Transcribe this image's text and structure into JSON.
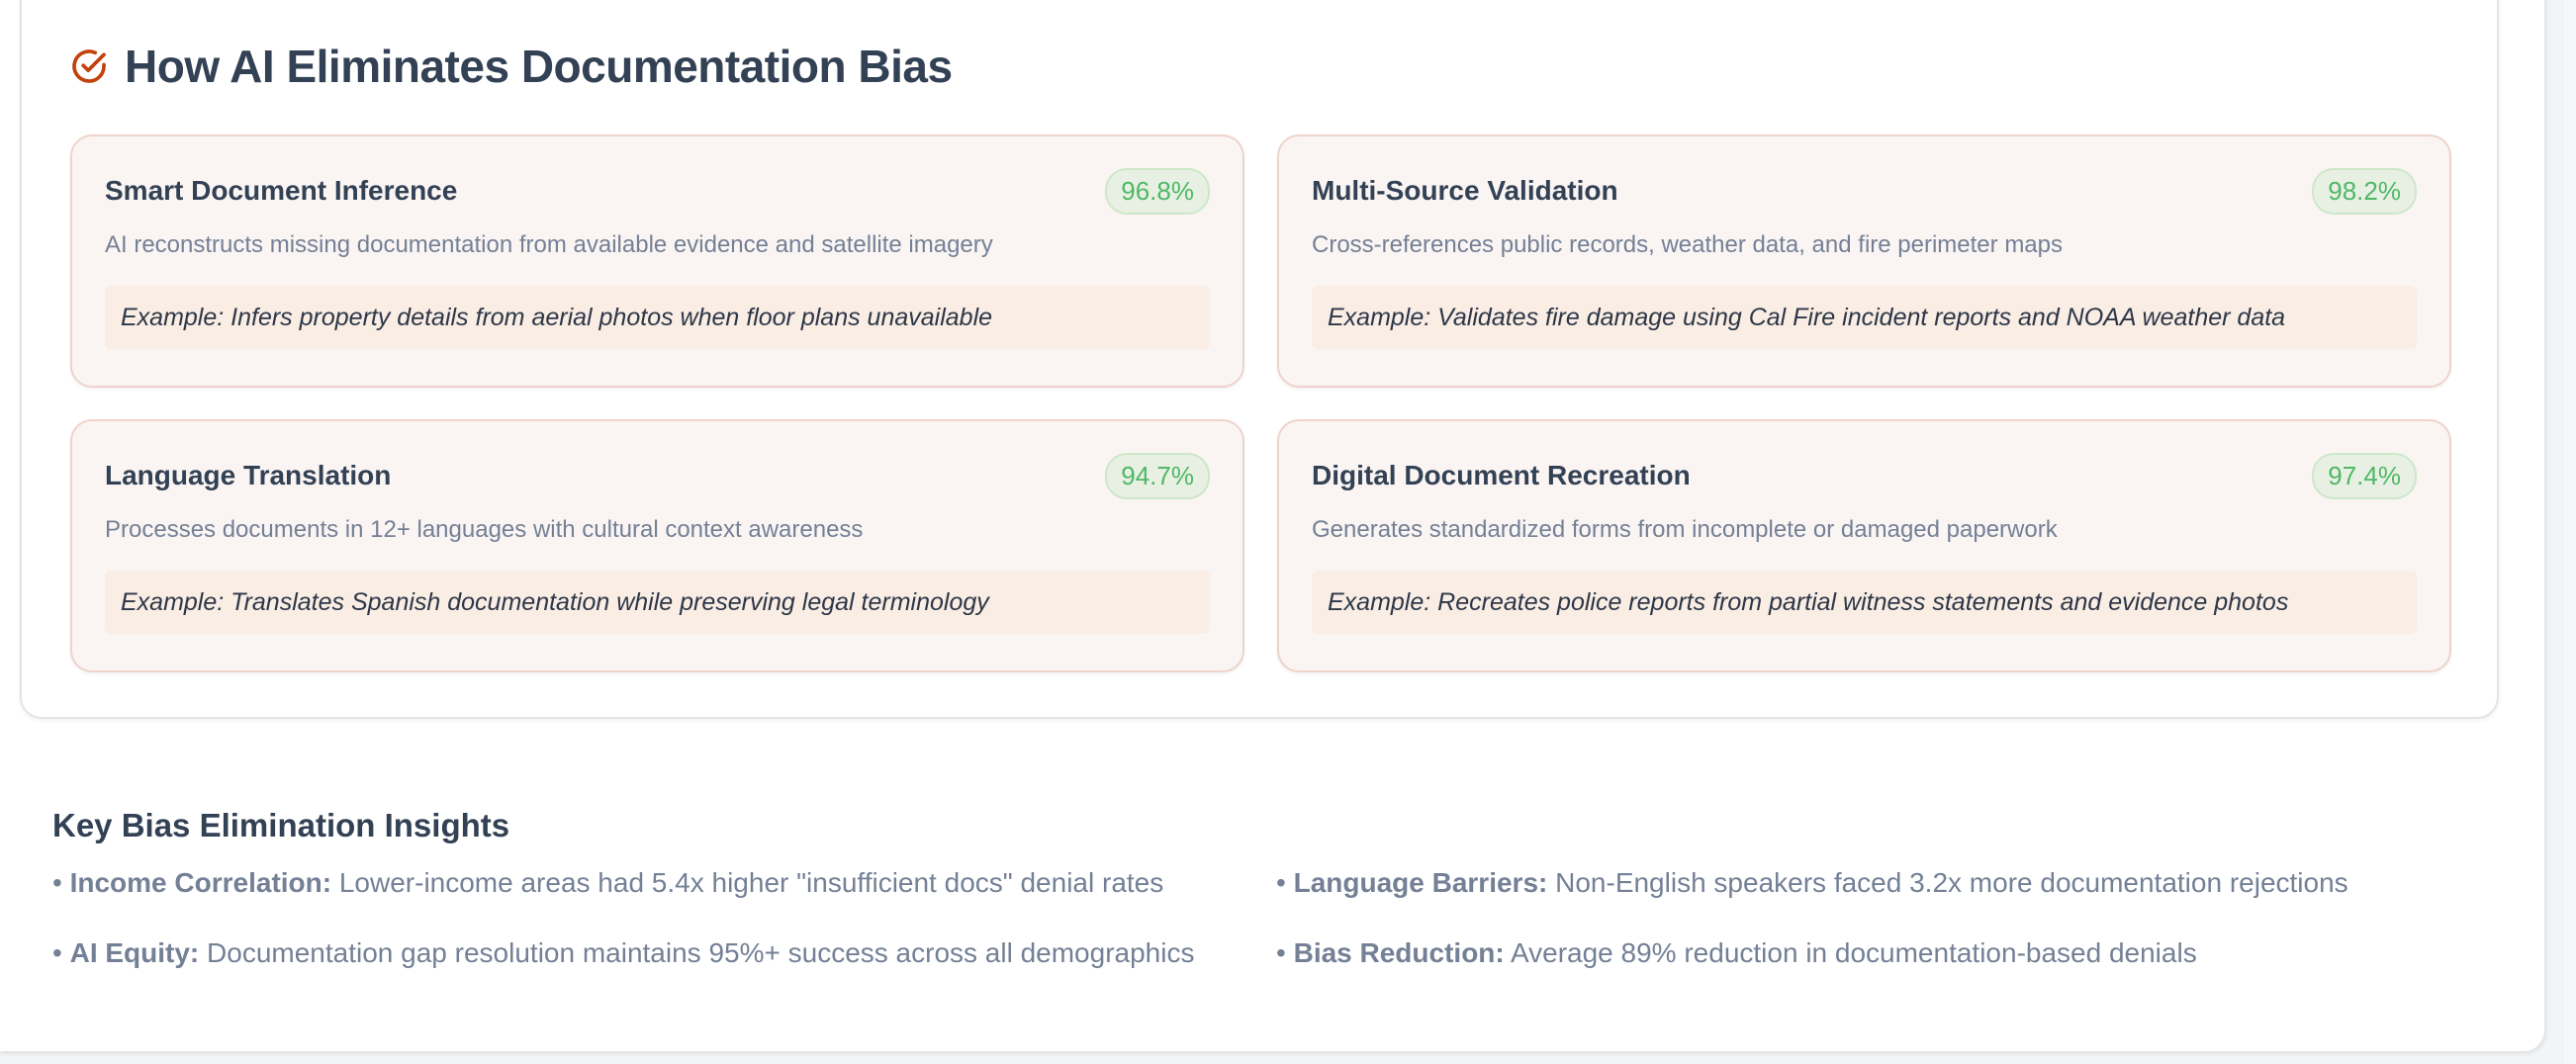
{
  "section": {
    "title": "How AI Eliminates Documentation Bias",
    "icon": "check-circle-icon",
    "accent": "#c2410c",
    "cards": [
      {
        "name": "Smart Document Inference",
        "score": "96.8%",
        "desc": "AI reconstructs missing documentation from available evidence and satellite imagery",
        "example": "Example: Infers property details from aerial photos when floor plans unavailable"
      },
      {
        "name": "Multi-Source Validation",
        "score": "98.2%",
        "desc": "Cross-references public records, weather data, and fire perimeter maps",
        "example": "Example: Validates fire damage using Cal Fire incident reports and NOAA weather data"
      },
      {
        "name": "Language Translation",
        "score": "94.7%",
        "desc": "Processes documents in 12+ languages with cultural context awareness",
        "example": "Example: Translates Spanish documentation while preserving legal terminology"
      },
      {
        "name": "Digital Document Recreation",
        "score": "97.4%",
        "desc": "Generates standardized forms from incomplete or damaged paperwork",
        "example": "Example: Recreates police reports from partial witness statements and evidence photos"
      }
    ]
  },
  "insights": {
    "title": "Key Bias Elimination Insights",
    "items": [
      {
        "label": "Income Correlation:",
        "text": " Lower-income areas had 5.4x higher \"insufficient docs\" denial rates"
      },
      {
        "label": "Language Barriers:",
        "text": " Non-English speakers faced 3.2x more documentation rejections"
      },
      {
        "label": "AI Equity:",
        "text": " Documentation gap resolution maintains 95%+ success across all demographics"
      },
      {
        "label": "Bias Reduction:",
        "text": " Average 89% reduction in documentation-based denials"
      }
    ]
  },
  "colors": {
    "badge_text": "#4fb866",
    "card_border": "#efd3cc",
    "heading": "#334155",
    "muted": "#748096"
  }
}
